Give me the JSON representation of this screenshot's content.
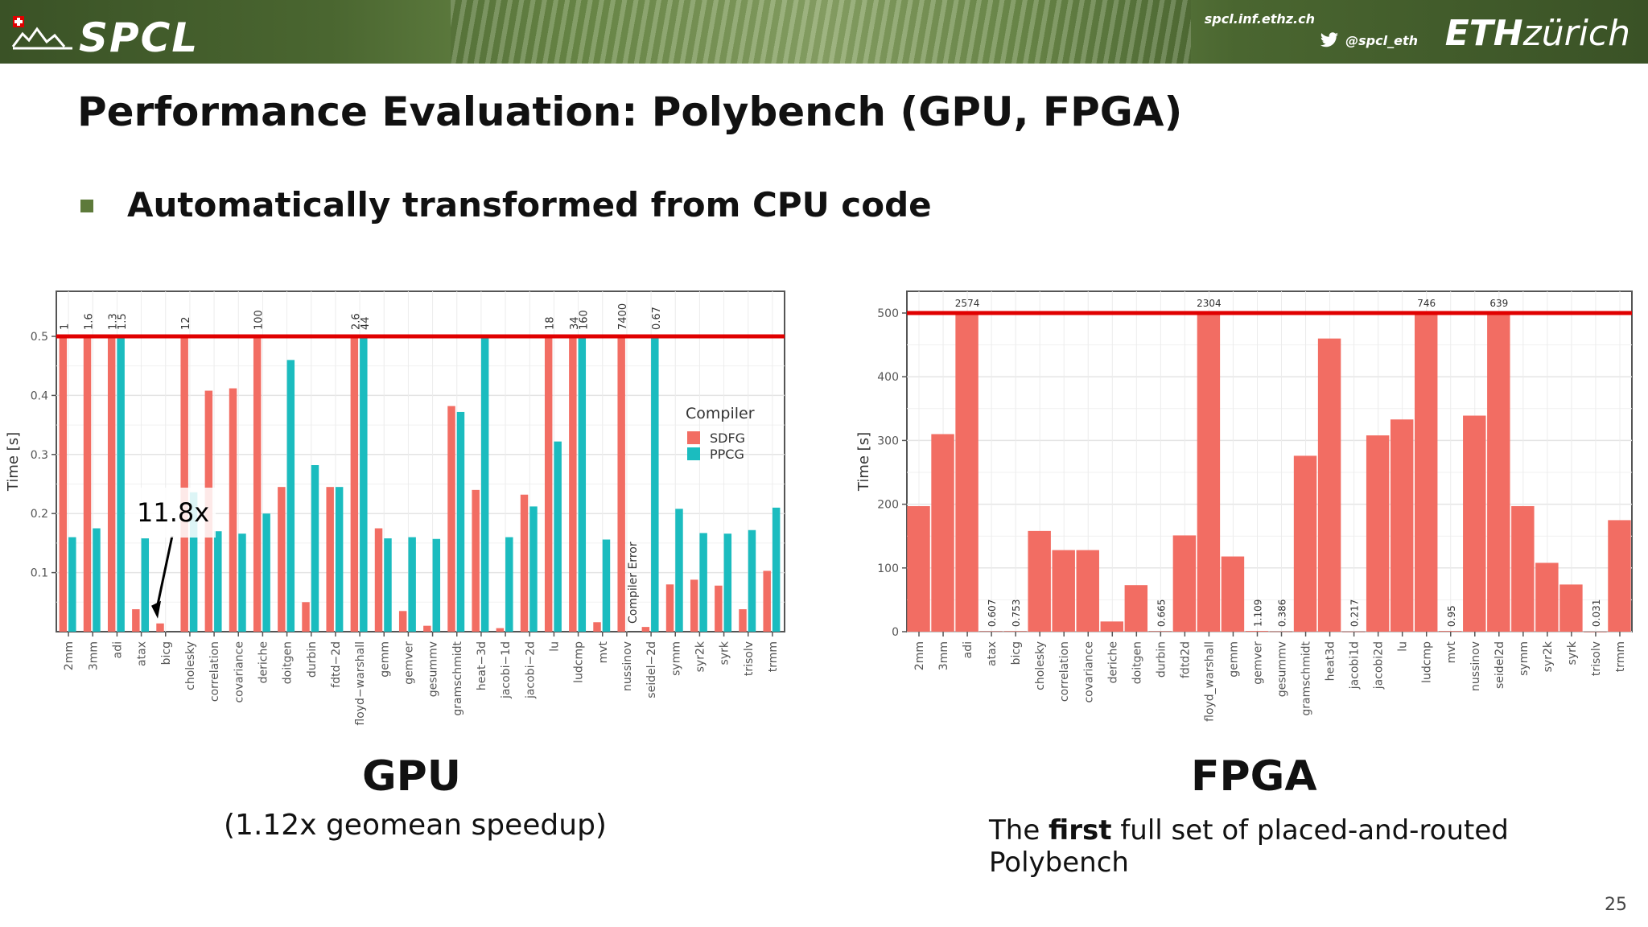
{
  "header": {
    "logo_text": "SPCL",
    "site_url": "spcl.inf.ethz.ch",
    "twitter_handle": "@spcl_eth",
    "eth_logo_bold": "ETH",
    "eth_logo_light": "zürich"
  },
  "slide": {
    "title": "Performance Evaluation: Polybench (GPU, FPGA)",
    "bullet": "Automatically transformed from CPU code",
    "page_number": "25"
  },
  "captions": {
    "gpu_title": "GPU",
    "gpu_subtitle": "(1.12x geomean speedup)",
    "fpga_title": "FPGA",
    "fpga_sub_pre": "The ",
    "fpga_sub_bold": "first",
    "fpga_sub_post": " full set of placed-and-routed Polybench"
  },
  "colors": {
    "sdfg": "#f26d63",
    "ppcg": "#1bbcbf",
    "threshold": "#e00000",
    "accent": "#5d7a3a"
  },
  "chart_data": [
    {
      "type": "bar",
      "id": "gpu",
      "ylabel": "Time [s]",
      "ylim": [
        0,
        0.5
      ],
      "yticks": [
        0.1,
        0.2,
        0.3,
        0.4,
        0.5
      ],
      "threshold": 0.5,
      "grid": true,
      "legend_title": "Compiler",
      "legend_position": "right",
      "categories": [
        "2mm",
        "3mm",
        "adi",
        "atax",
        "bicg",
        "cholesky",
        "correlation",
        "covariance",
        "deriche",
        "doitgen",
        "durbin",
        "fdtd−2d",
        "floyd−warshall",
        "gemm",
        "gemver",
        "gesummv",
        "gramschmidt",
        "heat−3d",
        "jacobi−1d",
        "jacobi−2d",
        "lu",
        "ludcmp",
        "mvt",
        "nussinov",
        "seidel−2d",
        "symm",
        "syr2k",
        "syrk",
        "trisolv",
        "trmm"
      ],
      "series": [
        {
          "name": "SDFG",
          "values": [
            0.5,
            0.5,
            0.5,
            0.038,
            0.014,
            0.5,
            0.408,
            0.412,
            0.5,
            0.245,
            0.05,
            0.245,
            0.5,
            0.175,
            0.035,
            0.01,
            0.382,
            0.24,
            0.006,
            0.232,
            0.5,
            0.5,
            0.016,
            0.5,
            0.008,
            0.08,
            0.088,
            0.078,
            0.038,
            0.103
          ]
        },
        {
          "name": "PPCG",
          "values": [
            0.16,
            0.175,
            0.5,
            0.158,
            null,
            0.236,
            0.17,
            0.166,
            0.2,
            0.46,
            0.282,
            0.245,
            0.5,
            0.158,
            0.16,
            0.157,
            0.372,
            0.5,
            0.16,
            0.212,
            0.322,
            0.5,
            0.156,
            null,
            0.5,
            0.208,
            0.167,
            0.166,
            0.172,
            0.21
          ]
        }
      ],
      "value_labels": [
        {
          "category": "2mm",
          "series": "SDFG",
          "text": "1"
        },
        {
          "category": "3mm",
          "series": "SDFG",
          "text": "1.6"
        },
        {
          "category": "adi",
          "series": "SDFG",
          "text": "1.3"
        },
        {
          "category": "adi",
          "series": "PPCG",
          "text": "1.5"
        },
        {
          "category": "cholesky",
          "series": "SDFG",
          "text": "12"
        },
        {
          "category": "deriche",
          "series": "SDFG",
          "text": "100"
        },
        {
          "category": "floyd−warshall",
          "series": "SDFG",
          "text": "2.6"
        },
        {
          "category": "floyd−warshall",
          "series": "PPCG",
          "text": "44"
        },
        {
          "category": "lu",
          "series": "SDFG",
          "text": "18"
        },
        {
          "category": "ludcmp",
          "series": "SDFG",
          "text": "34"
        },
        {
          "category": "ludcmp",
          "series": "PPCG",
          "text": "160"
        },
        {
          "category": "nussinov",
          "series": "SDFG",
          "text": "7400"
        },
        {
          "category": "seidel−2d",
          "series": "PPCG",
          "text": "0.67"
        }
      ],
      "annotations": [
        {
          "text": "11.8x",
          "target_category": "bicg"
        },
        {
          "text": "Compiler Error",
          "target_category": "nussinov"
        }
      ]
    },
    {
      "type": "bar",
      "id": "fpga",
      "ylabel": "Time [s]",
      "ylim": [
        0,
        500
      ],
      "yticks": [
        0,
        100,
        200,
        300,
        400,
        500
      ],
      "threshold": 500,
      "grid": true,
      "categories": [
        "2mm",
        "3mm",
        "adi",
        "atax",
        "bicg",
        "cholesky",
        "correlation",
        "covariance",
        "deriche",
        "doitgen",
        "durbin",
        "fdtd2d",
        "floyd_warshall",
        "gemm",
        "gemver",
        "gesummv",
        "gramschmidt",
        "heat3d",
        "jacobi1d",
        "jacobi2d",
        "lu",
        "ludcmp",
        "mvt",
        "nussinov",
        "seidel2d",
        "symm",
        "syr2k",
        "syrk",
        "trisolv",
        "trmm"
      ],
      "series": [
        {
          "name": "SDFG",
          "values": [
            197,
            310,
            500,
            0.607,
            0.753,
            158,
            128,
            128,
            16,
            73,
            0.665,
            151,
            500,
            118,
            1.109,
            0.386,
            276,
            460,
            0.217,
            308,
            333,
            500,
            0.95,
            339,
            500,
            197,
            108,
            74,
            0.031,
            175
          ]
        }
      ],
      "value_labels": [
        {
          "category": "adi",
          "text": "2574"
        },
        {
          "category": "atax",
          "text": "0.607"
        },
        {
          "category": "bicg",
          "text": "0.753"
        },
        {
          "category": "durbin",
          "text": "0.665"
        },
        {
          "category": "floyd_warshall",
          "text": "2304"
        },
        {
          "category": "gemver",
          "text": "1.109"
        },
        {
          "category": "gesummv",
          "text": "0.386"
        },
        {
          "category": "jacobi1d",
          "text": "0.217"
        },
        {
          "category": "ludcmp",
          "text": "746"
        },
        {
          "category": "mvt",
          "text": "0.95"
        },
        {
          "category": "seidel2d",
          "text": "639"
        },
        {
          "category": "trisolv",
          "text": "0.031"
        }
      ]
    }
  ]
}
